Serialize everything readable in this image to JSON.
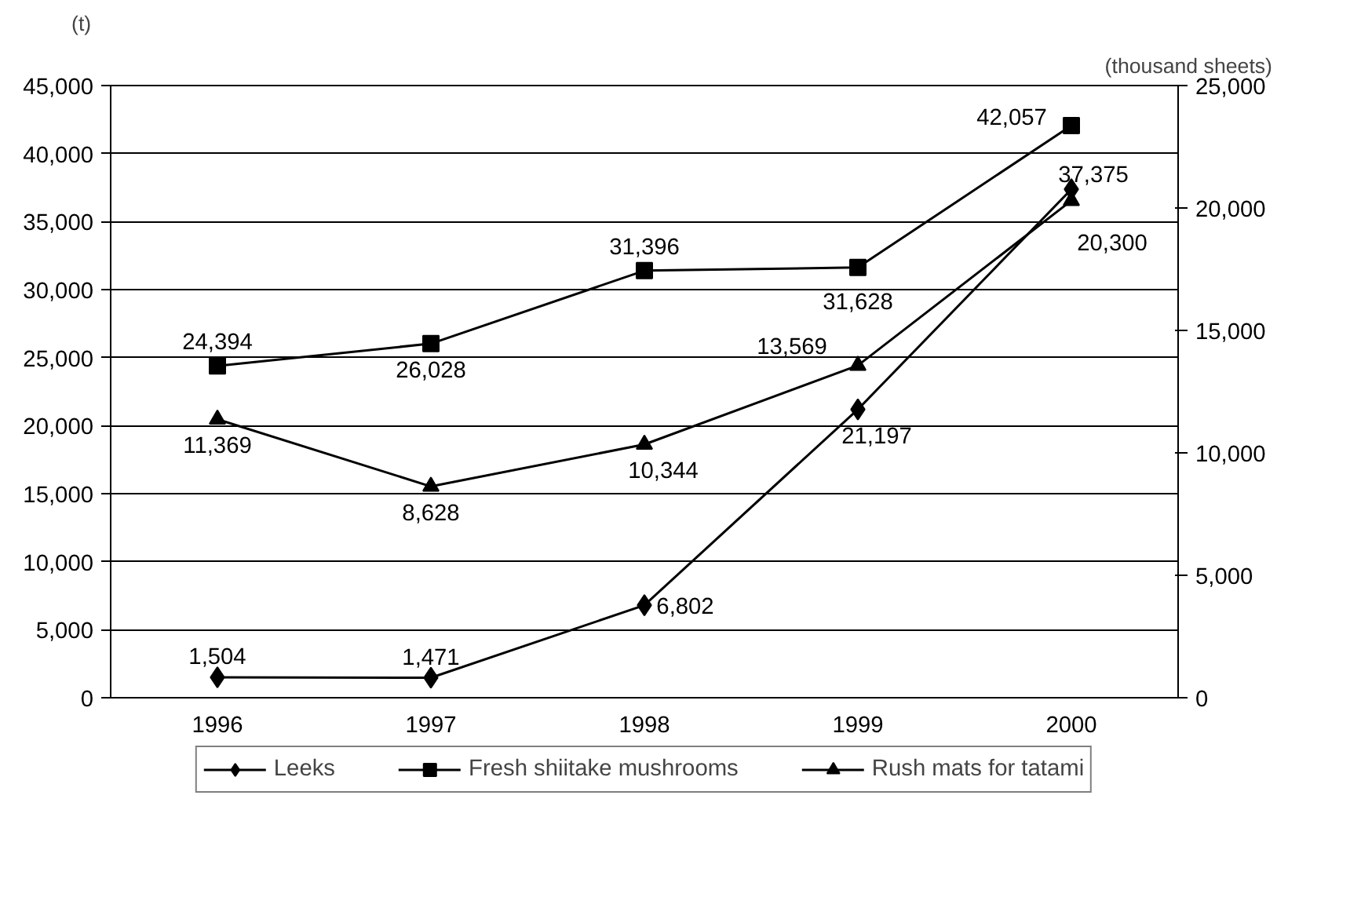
{
  "chart_data": {
    "type": "line",
    "categories": [
      "1996",
      "1997",
      "1998",
      "1999",
      "2000"
    ],
    "ylabel": "(t)",
    "y2label": "(thousand sheets)",
    "ylim": [
      0,
      45000
    ],
    "yticks": [
      {
        "value": 0,
        "label": "0"
      },
      {
        "value": 5000,
        "label": "5,000"
      },
      {
        "value": 10000,
        "label": "10,000"
      },
      {
        "value": 15000,
        "label": "15,000"
      },
      {
        "value": 20000,
        "label": "20,000"
      },
      {
        "value": 25000,
        "label": "25,000"
      },
      {
        "value": 30000,
        "label": "30,000"
      },
      {
        "value": 35000,
        "label": "35,000"
      },
      {
        "value": 40000,
        "label": "40,000"
      },
      {
        "value": 45000,
        "label": "45,000"
      }
    ],
    "y2lim": [
      0,
      25000
    ],
    "y2ticks": [
      {
        "value": 0,
        "label": "0"
      },
      {
        "value": 5000,
        "label": "5,000"
      },
      {
        "value": 10000,
        "label": "10,000"
      },
      {
        "value": 15000,
        "label": "15,000"
      },
      {
        "value": 20000,
        "label": "20,000"
      },
      {
        "value": 25000,
        "label": "25,000"
      }
    ],
    "grid": "y",
    "legend": "bottom",
    "line_style": "solid",
    "series": [
      {
        "name": "Leeks",
        "color": "#000000",
        "marker": "diamond",
        "values": [
          1504,
          1471,
          6802,
          21197,
          37375
        ],
        "value_labels": [
          "1,504",
          "1,471",
          "6,802",
          "21,197",
          "37,375"
        ]
      },
      {
        "name": "Fresh shiitake mushrooms",
        "color": "#000000",
        "marker": "square",
        "values": [
          24394,
          26028,
          31396,
          31628,
          42057
        ],
        "value_labels": [
          "24,394",
          "26,028",
          "31,396",
          "31,628",
          "42,057"
        ]
      },
      {
        "name": "Rush mats for tatami",
        "color": "#000000",
        "marker": "triangle",
        "axis": "y2",
        "values": [
          11369,
          8628,
          10344,
          13569,
          20300
        ],
        "value_labels": [
          "11,369",
          "8,628",
          "10,344",
          "13,569",
          "20,300"
        ]
      }
    ]
  }
}
